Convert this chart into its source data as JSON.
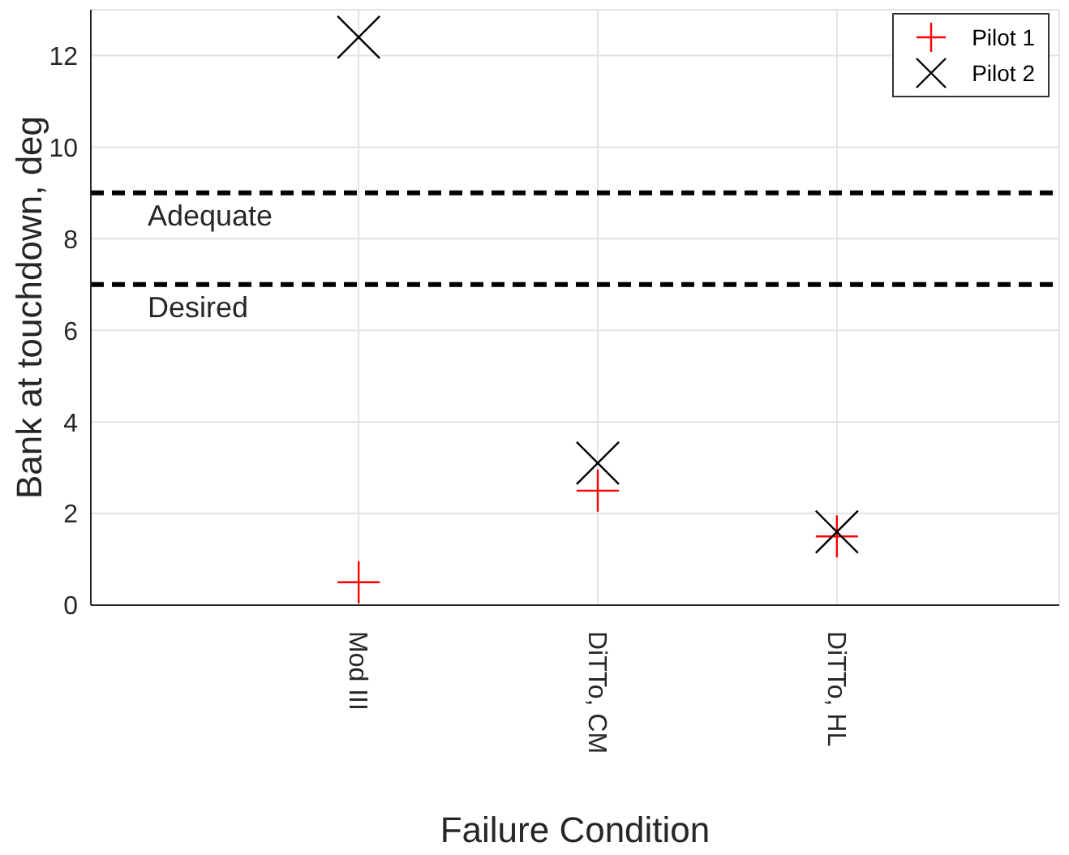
{
  "chart_data": {
    "type": "scatter",
    "xlabel": "Failure Condition",
    "ylabel": "Bank at touchdown, deg",
    "categories": [
      "Mod III",
      "DiTTo, CM",
      "DiTTo, HL"
    ],
    "series": [
      {
        "name": "Pilot 1",
        "color": "#ff0000",
        "marker": "cross",
        "values": [
          0.5,
          2.5,
          1.5
        ]
      },
      {
        "name": "Pilot 2",
        "color": "#000000",
        "marker": "cross",
        "values": [
          12.4,
          3.1,
          1.6
        ]
      }
    ],
    "ylim": [
      0,
      13
    ],
    "yticks": [
      0,
      2,
      4,
      6,
      8,
      10,
      12
    ],
    "grid": true,
    "legend": "top right",
    "ref_lines": [
      {
        "axis": "y",
        "value": 9,
        "label": "Adequate",
        "color": "#000000",
        "line_style": "dashed"
      },
      {
        "axis": "y",
        "value": 7,
        "label": "Desired",
        "color": "#000000",
        "line_style": "dashed"
      }
    ]
  }
}
